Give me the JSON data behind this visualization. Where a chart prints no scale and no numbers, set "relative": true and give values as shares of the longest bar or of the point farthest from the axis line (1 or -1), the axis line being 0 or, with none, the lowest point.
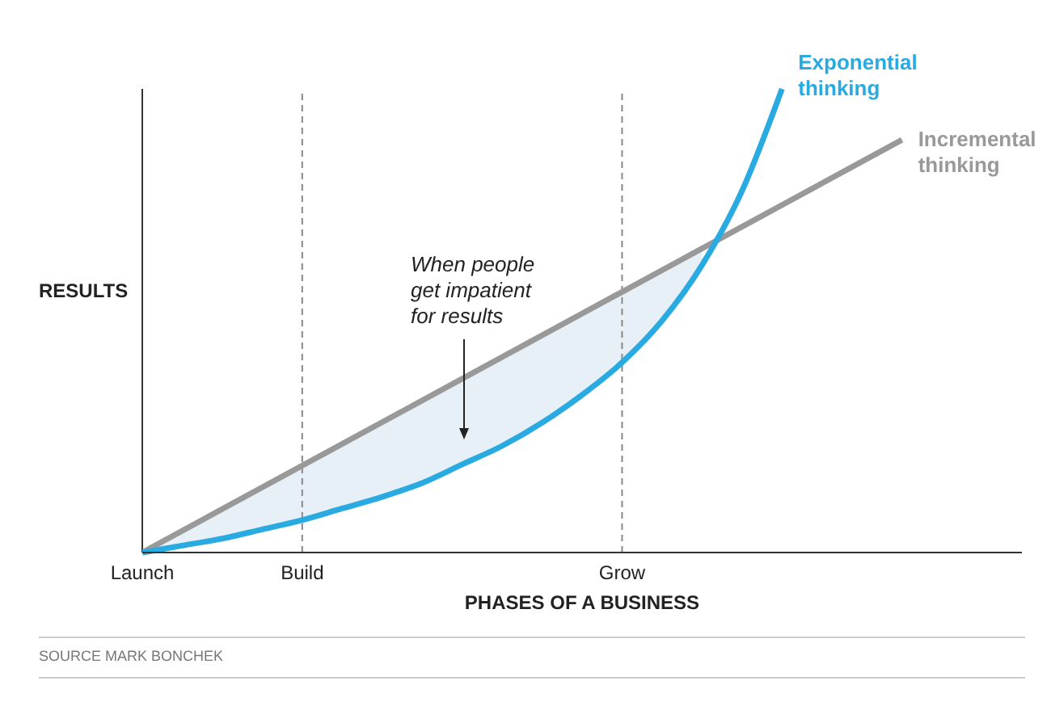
{
  "chart_data": {
    "type": "line",
    "relative": true,
    "xlabel": "PHASES OF A BUSINESS",
    "ylabel": "RESULTS",
    "marker": "none",
    "categories": [
      "Launch",
      null,
      null,
      null,
      "Build",
      null,
      null,
      null,
      null,
      null,
      null,
      null,
      "Grow",
      null,
      null,
      null,
      null,
      null,
      null,
      null,
      null,
      null,
      null
    ],
    "ref_lines": [
      {
        "axis": "x",
        "value": "Launch",
        "line_style": "solid",
        "color": "#333333"
      },
      {
        "axis": "x",
        "value": "Build",
        "line_style": "dashed",
        "color": "#888888"
      },
      {
        "axis": "x",
        "value": "Grow",
        "line_style": "dashed",
        "color": "#888888"
      }
    ],
    "series": [
      {
        "name": "Incremental thinking",
        "color": "#999999",
        "values": [
          0,
          null,
          null,
          null,
          null,
          null,
          null,
          null,
          null,
          null,
          null,
          null,
          null,
          null,
          null,
          null,
          null,
          null,
          null,
          0.89,
          null,
          null,
          null
        ]
      },
      {
        "name": "Exponential thinking",
        "color": "#29abe2",
        "values": [
          0,
          0.015,
          0.03,
          0.05,
          0.07,
          0.095,
          0.12,
          0.15,
          0.19,
          0.23,
          0.28,
          0.34,
          0.41,
          0.5,
          0.62,
          0.78,
          1,
          null,
          null,
          null,
          null,
          null,
          null
        ],
        "lower": [
          0,
          0.015,
          0.03,
          0.05,
          0.07,
          0.095,
          0.12,
          0.15,
          0.19,
          0.23,
          0.28,
          0.34,
          0.41,
          0.5,
          0.62,
          null,
          null,
          null,
          null,
          null,
          null,
          null,
          null
        ],
        "upper": [
          0,
          0.05,
          0.09,
          0.14,
          0.19,
          0.24,
          0.28,
          0.33,
          0.38,
          0.42,
          0.47,
          0.52,
          0.57,
          0.61,
          0.66,
          null,
          null,
          null,
          null,
          null,
          null,
          null,
          null
        ]
      }
    ],
    "annotations": [
      "When people get impatient for results",
      "SOURCE MARK BONCHEK"
    ]
  }
}
